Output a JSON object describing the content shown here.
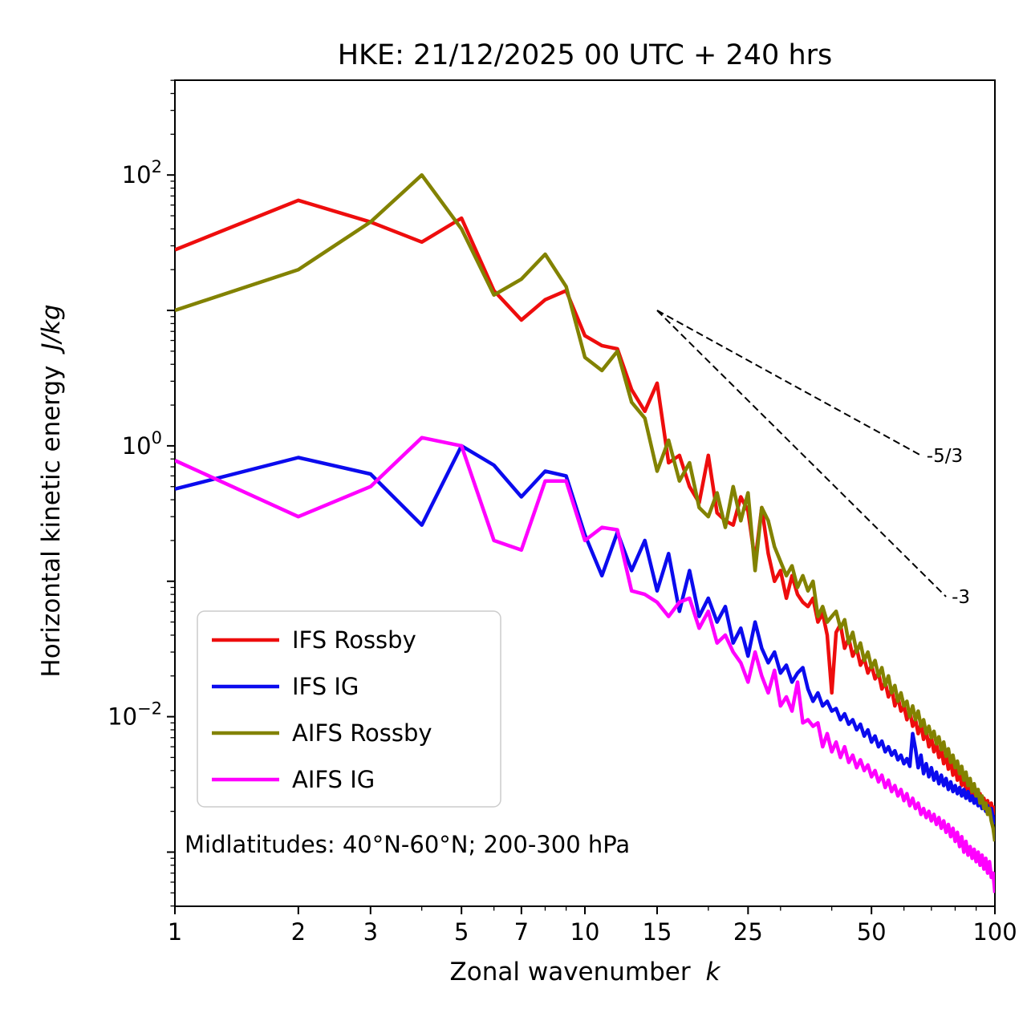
{
  "chart_data": {
    "type": "line",
    "title": "HKE: 21/12/2025 00 UTC + 240 hrs",
    "xlabel": {
      "text": "Zonal wavenumber",
      "math": "k"
    },
    "ylabel": {
      "text": "Horizontal kinetic energy",
      "math": "J/kg"
    },
    "annotation": "Midlatitudes: 40°N-60°N; 200-300 hPa",
    "x_scale": "log",
    "y_scale": "log",
    "xlim": [
      1,
      100
    ],
    "ylim_log10": [
      -3.4,
      2.7
    ],
    "grid": false,
    "legend_position": "lower left",
    "x_axis": {
      "ticks": [
        {
          "v": 1,
          "label": "1"
        },
        {
          "v": 2,
          "label": "2"
        },
        {
          "v": 3,
          "label": "3"
        },
        {
          "v": 5,
          "label": "5"
        },
        {
          "v": 7,
          "label": "7"
        },
        {
          "v": 10,
          "label": "10"
        },
        {
          "v": 15,
          "label": "15"
        },
        {
          "v": 25,
          "label": "25"
        },
        {
          "v": 50,
          "label": "50"
        },
        {
          "v": 100,
          "label": "100"
        }
      ],
      "minor_ticks": [
        4,
        6,
        8,
        9,
        20,
        30,
        40,
        60,
        70,
        80,
        90
      ]
    },
    "y_axis": {
      "labeled_ticks": [
        {
          "v": 100,
          "base": "10",
          "exp": "2"
        },
        {
          "v": 1,
          "base": "10",
          "exp": "0"
        },
        {
          "v": 0.01,
          "base": "10",
          "exp": "−2"
        }
      ]
    },
    "x": [
      1,
      2,
      3,
      4,
      5,
      6,
      7,
      8,
      9,
      10,
      11,
      12,
      13,
      14,
      15,
      16,
      17,
      18,
      19,
      20,
      21,
      22,
      23,
      24,
      25,
      26,
      27,
      28,
      29,
      30,
      31,
      32,
      33,
      34,
      35,
      36,
      37,
      38,
      39,
      40,
      41,
      42,
      43,
      44,
      45,
      46,
      47,
      48,
      49,
      50,
      51,
      52,
      53,
      54,
      55,
      56,
      57,
      58,
      59,
      60,
      61,
      62,
      63,
      64,
      65,
      66,
      67,
      68,
      69,
      70,
      71,
      72,
      73,
      74,
      75,
      76,
      77,
      78,
      79,
      80,
      81,
      82,
      83,
      84,
      85,
      86,
      87,
      88,
      89,
      90,
      91,
      92,
      93,
      94,
      95,
      96,
      97,
      98,
      99,
      100
    ],
    "series": [
      {
        "name": "IFS Rossby",
        "color": "#ee0d0d",
        "values": [
          28,
          65,
          45,
          32,
          48,
          14,
          8.5,
          12,
          14,
          6.5,
          5.5,
          5.2,
          2.6,
          1.8,
          2.9,
          0.75,
          0.85,
          0.5,
          0.38,
          0.85,
          0.32,
          0.28,
          0.26,
          0.42,
          0.33,
          0.14,
          0.35,
          0.16,
          0.1,
          0.12,
          0.075,
          0.11,
          0.08,
          0.07,
          0.065,
          0.075,
          0.05,
          0.058,
          0.04,
          0.015,
          0.042,
          0.048,
          0.032,
          0.038,
          0.028,
          0.032,
          0.024,
          0.027,
          0.021,
          0.024,
          0.019,
          0.021,
          0.016,
          0.018,
          0.014,
          0.016,
          0.012,
          0.014,
          0.011,
          0.012,
          0.0095,
          0.011,
          0.0085,
          0.0095,
          0.0075,
          0.0088,
          0.0068,
          0.0078,
          0.006,
          0.007,
          0.0055,
          0.0063,
          0.005,
          0.0057,
          0.0045,
          0.0052,
          0.0041,
          0.0047,
          0.0037,
          0.0043,
          0.0034,
          0.0039,
          0.0031,
          0.0036,
          0.0029,
          0.0033,
          0.0027,
          0.0031,
          0.0025,
          0.0029,
          0.0023,
          0.0027,
          0.0022,
          0.0025,
          0.0021,
          0.0024,
          0.002,
          0.0023,
          0.0019,
          0.0022
        ]
      },
      {
        "name": "IFS IG",
        "color": "#0b0bee",
        "values": [
          0.48,
          0.82,
          0.62,
          0.26,
          1.0,
          0.72,
          0.42,
          0.65,
          0.6,
          0.22,
          0.11,
          0.23,
          0.12,
          0.2,
          0.085,
          0.16,
          0.06,
          0.12,
          0.055,
          0.075,
          0.05,
          0.065,
          0.035,
          0.045,
          0.028,
          0.05,
          0.032,
          0.025,
          0.03,
          0.021,
          0.024,
          0.018,
          0.021,
          0.023,
          0.016,
          0.013,
          0.015,
          0.012,
          0.013,
          0.011,
          0.0115,
          0.0095,
          0.0105,
          0.0088,
          0.0095,
          0.008,
          0.0088,
          0.0072,
          0.008,
          0.0065,
          0.0072,
          0.006,
          0.0066,
          0.0055,
          0.006,
          0.0052,
          0.0056,
          0.0048,
          0.0052,
          0.0045,
          0.0049,
          0.0043,
          0.0075,
          0.0058,
          0.0042,
          0.0052,
          0.0038,
          0.0045,
          0.0036,
          0.0042,
          0.0034,
          0.0039,
          0.0032,
          0.0037,
          0.0031,
          0.0035,
          0.0029,
          0.0033,
          0.0028,
          0.0031,
          0.0027,
          0.003,
          0.0026,
          0.0029,
          0.0025,
          0.0028,
          0.0024,
          0.0026,
          0.0023,
          0.0025,
          0.0022,
          0.0024,
          0.0021,
          0.0023,
          0.002,
          0.0022,
          0.0019,
          0.0021,
          0.0018,
          0.0016
        ]
      },
      {
        "name": "AIFS Rossby",
        "color": "#828200",
        "values": [
          10,
          20,
          45,
          100,
          40,
          13,
          17,
          26,
          15,
          4.5,
          3.6,
          5.0,
          2.1,
          1.6,
          0.65,
          1.1,
          0.55,
          0.75,
          0.35,
          0.3,
          0.45,
          0.25,
          0.5,
          0.28,
          0.45,
          0.12,
          0.35,
          0.28,
          0.18,
          0.14,
          0.11,
          0.13,
          0.09,
          0.11,
          0.085,
          0.1,
          0.055,
          0.065,
          0.05,
          0.055,
          0.06,
          0.045,
          0.052,
          0.035,
          0.042,
          0.03,
          0.035,
          0.026,
          0.03,
          0.023,
          0.026,
          0.02,
          0.023,
          0.017,
          0.02,
          0.015,
          0.017,
          0.013,
          0.015,
          0.012,
          0.013,
          0.01,
          0.012,
          0.0095,
          0.011,
          0.0085,
          0.0095,
          0.0075,
          0.0085,
          0.007,
          0.0078,
          0.0063,
          0.0071,
          0.0057,
          0.0065,
          0.0051,
          0.0058,
          0.0046,
          0.0052,
          0.0042,
          0.0047,
          0.0038,
          0.0043,
          0.0034,
          0.0039,
          0.0031,
          0.0035,
          0.0028,
          0.0032,
          0.0026,
          0.0029,
          0.0023,
          0.0026,
          0.0021,
          0.0023,
          0.0019,
          0.0021,
          0.0017,
          0.0015,
          0.0012
        ]
      },
      {
        "name": "AIFS IG",
        "color": "#ff00ff",
        "values": [
          0.78,
          0.3,
          0.5,
          1.15,
          1.0,
          0.2,
          0.17,
          0.55,
          0.55,
          0.2,
          0.25,
          0.24,
          0.085,
          0.08,
          0.07,
          0.055,
          0.07,
          0.075,
          0.045,
          0.06,
          0.035,
          0.04,
          0.03,
          0.025,
          0.018,
          0.03,
          0.02,
          0.015,
          0.022,
          0.012,
          0.014,
          0.011,
          0.018,
          0.009,
          0.0095,
          0.0085,
          0.009,
          0.006,
          0.0075,
          0.0055,
          0.0065,
          0.005,
          0.006,
          0.0046,
          0.0052,
          0.0042,
          0.0048,
          0.004,
          0.0044,
          0.0036,
          0.004,
          0.0033,
          0.0037,
          0.003,
          0.0034,
          0.0028,
          0.0031,
          0.0026,
          0.0029,
          0.0024,
          0.0027,
          0.0022,
          0.0025,
          0.0021,
          0.0023,
          0.0019,
          0.0021,
          0.0018,
          0.002,
          0.0017,
          0.0019,
          0.0016,
          0.0018,
          0.0015,
          0.0017,
          0.0014,
          0.0016,
          0.0013,
          0.0015,
          0.0012,
          0.0014,
          0.0011,
          0.0013,
          0.001,
          0.0012,
          0.00095,
          0.0011,
          0.0009,
          0.00105,
          0.00085,
          0.001,
          0.0008,
          0.00095,
          0.00075,
          0.0009,
          0.0007,
          0.00085,
          0.00065,
          0.0007,
          0.0005
        ]
      }
    ],
    "reference_lines": [
      {
        "label": "-5/3",
        "x": [
          15,
          66
        ],
        "y": [
          10,
          0.85
        ],
        "style": "dashed",
        "color": "#000000"
      },
      {
        "label": "-3",
        "x": [
          15,
          76
        ],
        "y": [
          10,
          0.077
        ],
        "style": "dashed",
        "color": "#000000"
      }
    ],
    "legend": {
      "entries": [
        "IFS Rossby",
        "IFS IG",
        "AIFS Rossby",
        "AIFS IG"
      ]
    }
  }
}
